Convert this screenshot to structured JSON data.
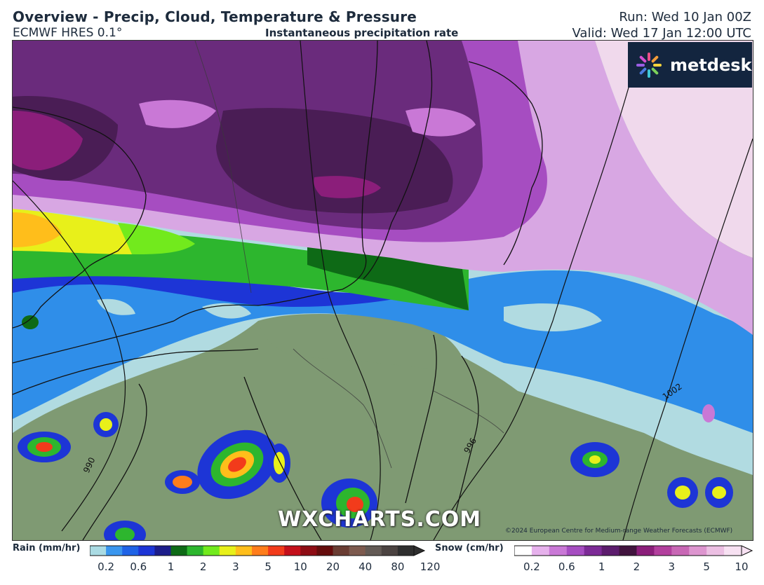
{
  "header": {
    "title": "Overview - Precip, Cloud, Temperature & Pressure",
    "model": "ECMWF HRES 0.1°",
    "subtitle": "Instantaneous precipitation rate",
    "run": "Run: Wed 10 Jan 00Z",
    "valid": "Valid: Wed 17 Jan 12:00 UTC"
  },
  "brand": {
    "logo_text": "metdesk",
    "watermark": "WXCHARTS.COM",
    "copyright": "©2024 European Centre for Medium-range Weather Forecasts (ECMWF)"
  },
  "map": {
    "isobar_labels": [
      "990",
      "1002",
      "996"
    ],
    "colors": {
      "land": "#7f9a73",
      "sea": "#b1dbe1",
      "rain_light": "#2f8ee9",
      "snow_dark": "#4a1d55",
      "snow_mid": "#8e3aa9",
      "snow_light": "#d8a7e3"
    }
  },
  "legend": {
    "rain": {
      "label": "Rain (mm/hr)",
      "ticks": [
        "0.2",
        "0.6",
        "1",
        "2",
        "3",
        "5",
        "10",
        "20",
        "40",
        "80",
        "120"
      ],
      "colors": [
        "#aadbe3",
        "#3a96ee",
        "#1f63e6",
        "#1d35d6",
        "#1d1d8a",
        "#0e6a16",
        "#2db62e",
        "#72ea1d",
        "#e8f01a",
        "#ffbe1b",
        "#ff7d1b",
        "#f23b1b",
        "#c4101b",
        "#8e0c14",
        "#650c0c",
        "#6a3d33",
        "#7d5a4e",
        "#635a55",
        "#4b4341",
        "#2f2f2f"
      ]
    },
    "snow": {
      "label": "Snow (cm/hr)",
      "ticks": [
        "0.2",
        "0.6",
        "1",
        "2",
        "3",
        "5",
        "10"
      ],
      "colors": [
        "#ffffff",
        "#e6b1ec",
        "#c978d6",
        "#a64dc1",
        "#7c2a96",
        "#5c1c6d",
        "#41143e",
        "#8b1e7a",
        "#b23f9d",
        "#c867b5",
        "#dd95cf",
        "#ecbfe3",
        "#f7e1f2"
      ]
    }
  }
}
